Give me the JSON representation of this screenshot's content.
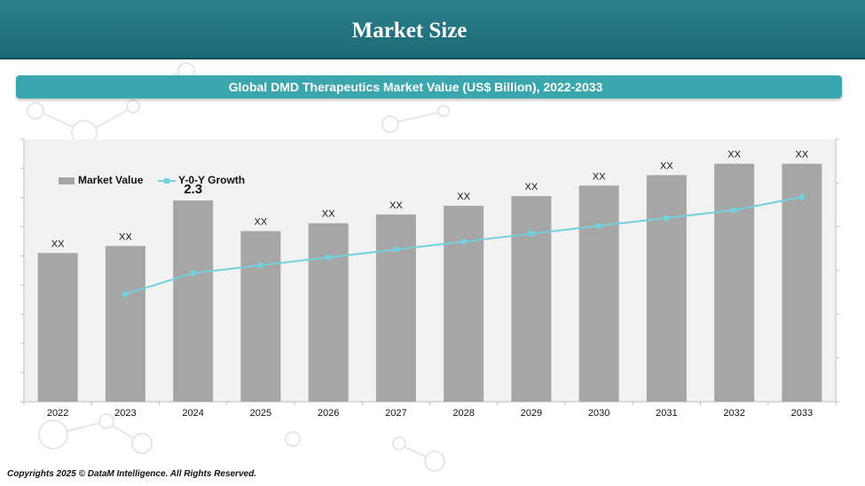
{
  "header": {
    "title": "Market Size"
  },
  "subtitle": "Global DMD Therapeutics Market Value (US$ Billion), 2022-2033",
  "footer": "Copyrights 2025 © DataM Intelligence. All Rights Reserved.",
  "colors": {
    "header": "#1f6f7b",
    "subtitle_bar": "#3aa7ae",
    "bar": "#a6a6a6",
    "line": "#74d0dc",
    "plot_bg": "#f2f2f2"
  },
  "chart_data": {
    "type": "bar",
    "categories": [
      "2022",
      "2023",
      "2024",
      "2025",
      "2026",
      "2027",
      "2028",
      "2029",
      "2030",
      "2031",
      "2032",
      "2033"
    ],
    "series": [
      {
        "name": "Market Value",
        "type": "bar",
        "values": [
          1.7,
          1.78,
          2.3,
          1.95,
          2.04,
          2.14,
          2.24,
          2.35,
          2.47,
          2.59,
          2.72,
          2.72
        ],
        "labels": [
          "XX",
          "XX",
          "2.3",
          "XX",
          "XX",
          "XX",
          "XX",
          "XX",
          "XX",
          "XX",
          "XX",
          "XX"
        ]
      },
      {
        "name": "Y-0-Y Growth",
        "type": "line",
        "values": [
          null,
          4.1,
          4.9,
          5.2,
          5.5,
          5.8,
          6.1,
          6.4,
          6.7,
          7.0,
          7.3,
          7.8
        ]
      }
    ],
    "ylim": [
      0,
      3
    ],
    "ylim_secondary": [
      0,
      10
    ],
    "legend": "top-left",
    "grid": false
  }
}
